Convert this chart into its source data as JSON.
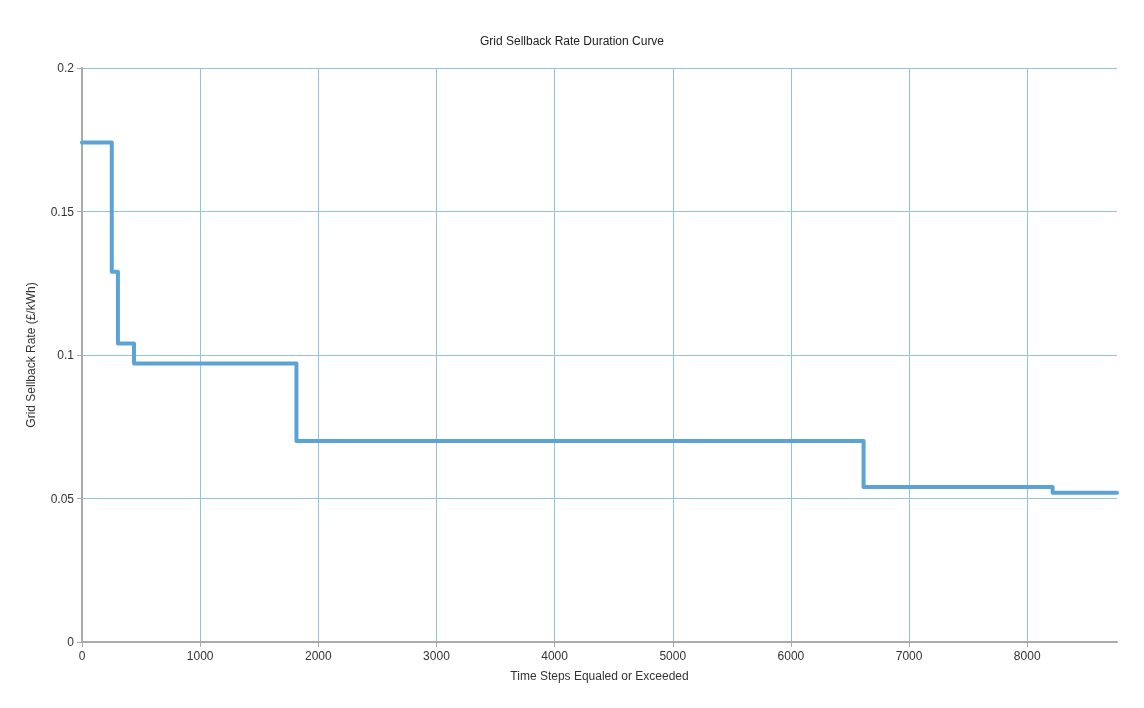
{
  "chart_data": {
    "type": "step",
    "title": "Grid Sellback Rate Duration Curve",
    "xlabel": "Time Steps Equaled or Exceeded",
    "ylabel": "Grid Sellback Rate (£/kWh)",
    "x": [
      0,
      252,
      304,
      440,
      1815,
      6615,
      8215,
      8760
    ],
    "series": [
      {
        "color": "#5ba3d4",
        "values": [
          0.174,
          0.129,
          0.104,
          0.097,
          0.07,
          0.054,
          0.052,
          0.052
        ]
      }
    ],
    "xlim": [
      0,
      8760
    ],
    "xticks": [
      0,
      1000,
      2000,
      3000,
      4000,
      5000,
      6000,
      7000,
      8000
    ],
    "ylim": [
      0,
      0.2
    ],
    "yticks": [
      0,
      0.05,
      0.1,
      0.15,
      0.2
    ],
    "grid": true,
    "marker": "none",
    "line_style": "solid"
  }
}
